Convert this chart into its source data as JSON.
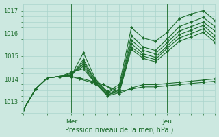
{
  "title": "",
  "xlabel": "Pression niveau de la mer( hPa )",
  "ylabel": "",
  "ylim": [
    1012.5,
    1017.3
  ],
  "xlim": [
    0,
    48
  ],
  "yticks": [
    1013,
    1014,
    1015,
    1016,
    1017
  ],
  "xtick_positions": [
    12,
    36
  ],
  "xtick_labels": [
    "Mer",
    "Jeu"
  ],
  "vline_positions": [
    12,
    36
  ],
  "bg_color": "#cce8e0",
  "grid_color": "#aad4cc",
  "line_color": "#1a6b2a",
  "marker": "D",
  "markersize": 2.0,
  "linewidth": 0.8,
  "series": [
    {
      "x": [
        0,
        3,
        6,
        9,
        12,
        15,
        18,
        21,
        24,
        27,
        30,
        33,
        36,
        39,
        42,
        45,
        48
      ],
      "y": [
        1012.65,
        1013.55,
        1014.05,
        1014.1,
        1014.15,
        1015.15,
        1014.0,
        1013.45,
        1013.75,
        1016.25,
        1015.8,
        1015.65,
        1016.05,
        1016.65,
        1016.85,
        1017.0,
        1016.55
      ]
    },
    {
      "x": [
        0,
        3,
        6,
        9,
        12,
        15,
        18,
        21,
        24,
        27,
        30,
        33,
        36,
        39,
        42,
        45,
        48
      ],
      "y": [
        1012.65,
        1013.55,
        1014.05,
        1014.1,
        1014.15,
        1014.85,
        1013.95,
        1013.4,
        1013.65,
        1015.9,
        1015.4,
        1015.25,
        1015.75,
        1016.3,
        1016.5,
        1016.7,
        1016.3
      ]
    },
    {
      "x": [
        0,
        3,
        6,
        9,
        12,
        15,
        18,
        21,
        24,
        27,
        30,
        33,
        36,
        39,
        42,
        45,
        48
      ],
      "y": [
        1012.65,
        1013.55,
        1014.05,
        1014.1,
        1014.15,
        1014.75,
        1013.9,
        1013.35,
        1013.55,
        1015.7,
        1015.25,
        1015.1,
        1015.6,
        1016.1,
        1016.3,
        1016.5,
        1016.1
      ]
    },
    {
      "x": [
        0,
        3,
        6,
        9,
        12,
        15,
        18,
        21,
        24,
        27,
        30,
        33,
        36,
        39,
        42,
        45,
        48
      ],
      "y": [
        1012.65,
        1013.55,
        1014.05,
        1014.1,
        1014.2,
        1014.65,
        1013.85,
        1013.3,
        1013.5,
        1015.55,
        1015.1,
        1014.95,
        1015.45,
        1015.95,
        1016.15,
        1016.35,
        1015.9
      ]
    },
    {
      "x": [
        0,
        3,
        6,
        9,
        12,
        15,
        18,
        21,
        24,
        27,
        30,
        33,
        36,
        39,
        42,
        45,
        48
      ],
      "y": [
        1012.65,
        1013.55,
        1014.05,
        1014.1,
        1014.25,
        1014.55,
        1013.8,
        1013.3,
        1013.45,
        1015.4,
        1015.0,
        1014.85,
        1015.35,
        1015.8,
        1016.0,
        1016.2,
        1015.75
      ]
    },
    {
      "x": [
        0,
        3,
        6,
        9,
        12,
        15,
        18,
        21,
        24,
        27,
        30,
        33,
        36,
        39,
        42,
        45,
        48
      ],
      "y": [
        1012.65,
        1013.55,
        1014.05,
        1014.1,
        1014.3,
        1014.45,
        1013.8,
        1013.25,
        1013.4,
        1015.3,
        1014.9,
        1014.75,
        1015.2,
        1015.65,
        1015.85,
        1016.05,
        1015.6
      ]
    },
    {
      "x": [
        0,
        3,
        6,
        9,
        12,
        14,
        17,
        20,
        24,
        27,
        30,
        33,
        36,
        39,
        42,
        45,
        48
      ],
      "y": [
        1012.65,
        1013.55,
        1014.05,
        1014.1,
        1014.1,
        1014.0,
        1013.85,
        1013.75,
        1013.35,
        1013.6,
        1013.75,
        1013.75,
        1013.8,
        1013.85,
        1013.9,
        1013.95,
        1014.0
      ]
    },
    {
      "x": [
        0,
        3,
        6,
        9,
        12,
        14,
        17,
        20,
        24,
        27,
        30,
        33,
        36,
        39,
        42,
        45,
        48
      ],
      "y": [
        1012.65,
        1013.55,
        1014.05,
        1014.1,
        1014.1,
        1014.05,
        1013.9,
        1013.75,
        1013.45,
        1013.55,
        1013.65,
        1013.65,
        1013.7,
        1013.75,
        1013.8,
        1013.85,
        1013.9
      ]
    }
  ]
}
